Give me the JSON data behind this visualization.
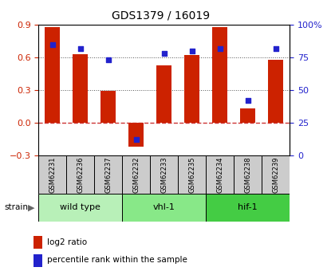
{
  "title": "GDS1379 / 16019",
  "samples": [
    "GSM62231",
    "GSM62236",
    "GSM62237",
    "GSM62232",
    "GSM62233",
    "GSM62235",
    "GSM62234",
    "GSM62238",
    "GSM62239"
  ],
  "log2_ratio": [
    0.88,
    0.63,
    0.29,
    -0.22,
    0.53,
    0.62,
    0.88,
    0.13,
    0.58
  ],
  "percentile_rank": [
    85,
    82,
    73,
    12,
    78,
    80,
    82,
    42,
    82
  ],
  "groups": [
    {
      "label": "wild type",
      "start": 0,
      "end": 3,
      "color": "#b8f0b8"
    },
    {
      "label": "vhl-1",
      "start": 3,
      "end": 6,
      "color": "#88e888"
    },
    {
      "label": "hif-1",
      "start": 6,
      "end": 9,
      "color": "#44cc44"
    }
  ],
  "ylim_left": [
    -0.3,
    0.9
  ],
  "ylim_right": [
    0,
    100
  ],
  "yticks_left": [
    -0.3,
    0.0,
    0.3,
    0.6,
    0.9
  ],
  "yticks_right": [
    0,
    25,
    50,
    75,
    100
  ],
  "bar_color": "#cc2200",
  "dot_color": "#2222cc",
  "hline_color": "#cc3333",
  "bar_width": 0.55,
  "legend_bar_color": "#cc2200",
  "legend_dot_color": "#2222cc",
  "sample_box_color": "#cccccc",
  "bg_color": "#ffffff"
}
